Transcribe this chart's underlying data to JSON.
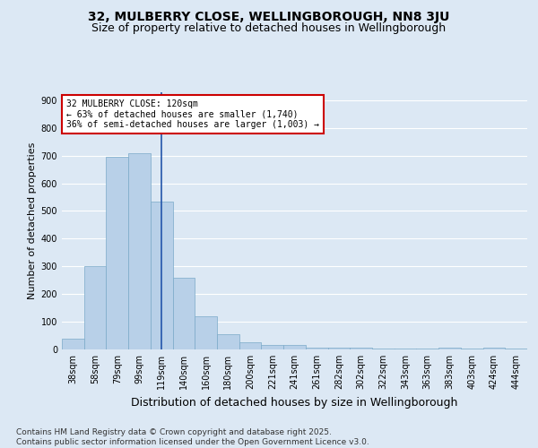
{
  "title1": "32, MULBERRY CLOSE, WELLINGBOROUGH, NN8 3JU",
  "title2": "Size of property relative to detached houses in Wellingborough",
  "xlabel": "Distribution of detached houses by size in Wellingborough",
  "ylabel": "Number of detached properties",
  "categories": [
    "38sqm",
    "58sqm",
    "79sqm",
    "99sqm",
    "119sqm",
    "140sqm",
    "160sqm",
    "180sqm",
    "200sqm",
    "221sqm",
    "241sqm",
    "261sqm",
    "282sqm",
    "302sqm",
    "322sqm",
    "343sqm",
    "363sqm",
    "383sqm",
    "403sqm",
    "424sqm",
    "444sqm"
  ],
  "values": [
    40,
    300,
    695,
    710,
    535,
    260,
    120,
    55,
    25,
    15,
    15,
    5,
    5,
    5,
    3,
    3,
    3,
    5,
    3,
    5,
    2
  ],
  "bar_color": "#b8d0e8",
  "bar_edge_color": "#7aaac8",
  "vline_x": 4,
  "vline_color": "#2255aa",
  "annotation_text": "32 MULBERRY CLOSE: 120sqm\n← 63% of detached houses are smaller (1,740)\n36% of semi-detached houses are larger (1,003) →",
  "annotation_box_color": "#ffffff",
  "annotation_box_edge": "#cc0000",
  "footer": "Contains HM Land Registry data © Crown copyright and database right 2025.\nContains public sector information licensed under the Open Government Licence v3.0.",
  "bg_color": "#dce8f4",
  "plot_bg_color": "#dce8f4",
  "ylim": [
    0,
    930
  ],
  "yticks": [
    0,
    100,
    200,
    300,
    400,
    500,
    600,
    700,
    800,
    900
  ],
  "grid_color": "#ffffff",
  "title1_fontsize": 10,
  "title2_fontsize": 9,
  "xlabel_fontsize": 9,
  "ylabel_fontsize": 8,
  "tick_fontsize": 7,
  "ann_fontsize": 7,
  "footer_fontsize": 6.5
}
